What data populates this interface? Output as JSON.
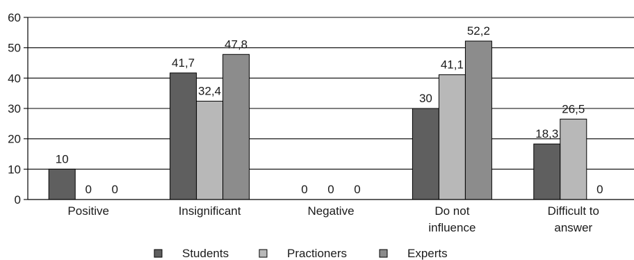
{
  "chart_data": {
    "type": "bar",
    "categories": [
      [
        "Positive"
      ],
      [
        "Insignificant"
      ],
      [
        "Negative"
      ],
      [
        "Do not",
        "influence"
      ],
      [
        "Difficult to",
        "answer"
      ]
    ],
    "series": [
      {
        "name": "Students",
        "values": [
          10,
          41.7,
          0,
          30,
          18.3
        ],
        "labels": [
          "10",
          "41,7",
          "0",
          "30",
          "18,3"
        ],
        "color": "#5f5f5f"
      },
      {
        "name": "Practioners",
        "values": [
          0,
          32.4,
          0,
          41.1,
          26.5
        ],
        "labels": [
          "0",
          "32,4",
          "0",
          "41,1",
          "26,5"
        ],
        "color": "#b8b8b8"
      },
      {
        "name": "Experts",
        "values": [
          0,
          47.8,
          0,
          52.2,
          0
        ],
        "labels": [
          "0",
          "47,8",
          "0",
          "52,2",
          "0"
        ],
        "color": "#8c8c8c"
      }
    ],
    "ylim": [
      0,
      60
    ],
    "yticks": [
      0,
      10,
      20,
      30,
      40,
      50,
      60
    ],
    "grid": true,
    "legend_position": "bottom"
  }
}
